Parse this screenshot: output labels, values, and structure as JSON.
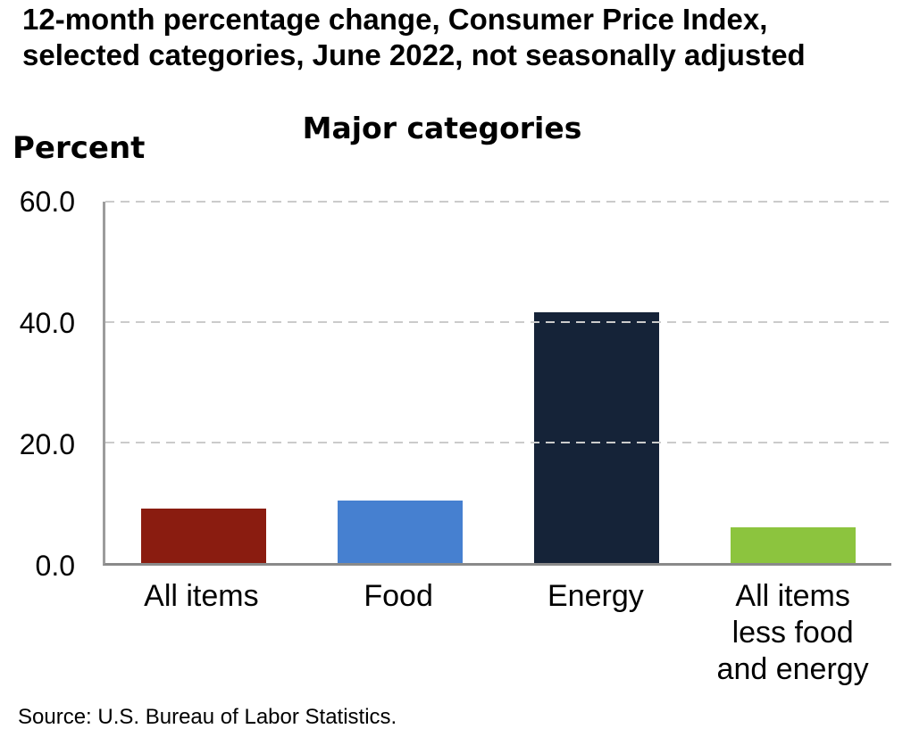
{
  "header": {
    "title": "12-month percentage change, Consumer Price Index,\nselected categories, June 2022, not seasonally adjusted"
  },
  "chart": {
    "unit_label": "Percent",
    "title": "Major categories"
  },
  "chart_data": {
    "type": "bar",
    "title": "Major categories",
    "categories": [
      "All items",
      "Food",
      "Energy",
      "All items less food and energy"
    ],
    "values": [
      9.1,
      10.4,
      41.6,
      5.9
    ],
    "bar_colors": [
      "#8a1c10",
      "#4680d0",
      "#152338",
      "#8cc43e"
    ],
    "xlabel": "",
    "ylabel": "Percent",
    "ylim": [
      0,
      60
    ],
    "yticks": [
      0,
      20,
      40,
      60
    ],
    "ytick_labels": [
      "0.0",
      "20.0",
      "40.0",
      "60.0"
    ],
    "grid": "horizontal-dashed",
    "legend": "none",
    "note": "not seasonally adjusted, June 2022"
  },
  "footer": {
    "source": "Source: U.S. Bureau of Labor Statistics."
  },
  "colors": {
    "background": "#ffffff",
    "text": "#000000",
    "gridline": "#cbcbcb",
    "axis_line": "#8a8a8a"
  }
}
